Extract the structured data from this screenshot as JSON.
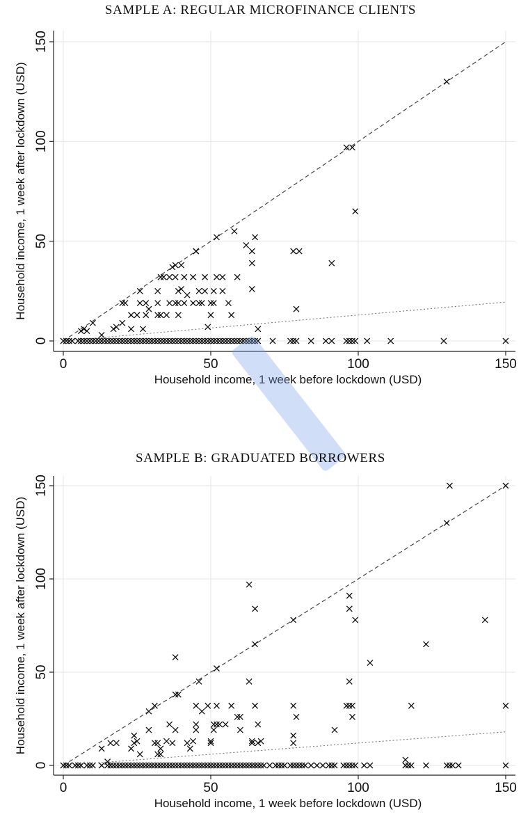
{
  "panels": [
    {
      "title": "SAMPLE A: REGULAR MICROFINANCE CLIENTS"
    },
    {
      "title": "SAMPLE B: GRADUATED BORROWERS"
    }
  ],
  "chart_data": [
    {
      "type": "scatter",
      "title": "SAMPLE A: REGULAR MICROFINANCE CLIENTS",
      "xlabel": "Household income, 1 week before lockdown (USD)",
      "ylabel": "Household income, 1 week after lockdown (USD)",
      "xlim": [
        0,
        150
      ],
      "ylim": [
        0,
        150
      ],
      "xticks": [
        0,
        50,
        100,
        150
      ],
      "yticks": [
        0,
        50,
        100,
        150
      ],
      "grid": true,
      "marker": "x",
      "reference_lines": [
        {
          "style": "dashed",
          "slope": 1.0
        },
        {
          "style": "dotted",
          "slope": 0.13
        }
      ],
      "points": [
        [
          0,
          0
        ],
        [
          1,
          0
        ],
        [
          2,
          0
        ],
        [
          3,
          0
        ],
        [
          5,
          0
        ],
        [
          6,
          0
        ],
        [
          7,
          0
        ],
        [
          8,
          0
        ],
        [
          9,
          0
        ],
        [
          10,
          0
        ],
        [
          11,
          0
        ],
        [
          12,
          0
        ],
        [
          13,
          0
        ],
        [
          14,
          0
        ],
        [
          15,
          0
        ],
        [
          16,
          0
        ],
        [
          17,
          0
        ],
        [
          18,
          0
        ],
        [
          19,
          0
        ],
        [
          20,
          0
        ],
        [
          21,
          0
        ],
        [
          22,
          0
        ],
        [
          23,
          0
        ],
        [
          24,
          0
        ],
        [
          25,
          0
        ],
        [
          26,
          0
        ],
        [
          27,
          0
        ],
        [
          28,
          0
        ],
        [
          29,
          0
        ],
        [
          30,
          0
        ],
        [
          31,
          0
        ],
        [
          32,
          0
        ],
        [
          33,
          0
        ],
        [
          34,
          0
        ],
        [
          35,
          0
        ],
        [
          36,
          0
        ],
        [
          37,
          0
        ],
        [
          38,
          0
        ],
        [
          39,
          0
        ],
        [
          40,
          0
        ],
        [
          41,
          0
        ],
        [
          42,
          0
        ],
        [
          43,
          0
        ],
        [
          44,
          0
        ],
        [
          45,
          0
        ],
        [
          46,
          0
        ],
        [
          47,
          0
        ],
        [
          48,
          0
        ],
        [
          49,
          0
        ],
        [
          50,
          0
        ],
        [
          51,
          0
        ],
        [
          52,
          0
        ],
        [
          53,
          0
        ],
        [
          54,
          0
        ],
        [
          55,
          0
        ],
        [
          56,
          0
        ],
        [
          57,
          0
        ],
        [
          58,
          0
        ],
        [
          59,
          0
        ],
        [
          60,
          0
        ],
        [
          61,
          0
        ],
        [
          62,
          0
        ],
        [
          63,
          0
        ],
        [
          64,
          0
        ],
        [
          65,
          0
        ],
        [
          66,
          0
        ],
        [
          71,
          0
        ],
        [
          77,
          0
        ],
        [
          78,
          0
        ],
        [
          79,
          0
        ],
        [
          84,
          0
        ],
        [
          89,
          0
        ],
        [
          91,
          0
        ],
        [
          96,
          0
        ],
        [
          97,
          0
        ],
        [
          98,
          0
        ],
        [
          99,
          0
        ],
        [
          103,
          0
        ],
        [
          111,
          0
        ],
        [
          129,
          0
        ],
        [
          150,
          0
        ],
        [
          6,
          5
        ],
        [
          7,
          6
        ],
        [
          8,
          5
        ],
        [
          10,
          9
        ],
        [
          13,
          3
        ],
        [
          17,
          6
        ],
        [
          18,
          7
        ],
        [
          20,
          9
        ],
        [
          20,
          19
        ],
        [
          21,
          19
        ],
        [
          23,
          6
        ],
        [
          23,
          13
        ],
        [
          25,
          13
        ],
        [
          26,
          19
        ],
        [
          26,
          25
        ],
        [
          27,
          6
        ],
        [
          28,
          13
        ],
        [
          28,
          19
        ],
        [
          29,
          16
        ],
        [
          32,
          13
        ],
        [
          32,
          19
        ],
        [
          32,
          25
        ],
        [
          33,
          32
        ],
        [
          33,
          13
        ],
        [
          34,
          32
        ],
        [
          35,
          13
        ],
        [
          36,
          32
        ],
        [
          36,
          19
        ],
        [
          37,
          37
        ],
        [
          38,
          19
        ],
        [
          38,
          32
        ],
        [
          38,
          38
        ],
        [
          39,
          13
        ],
        [
          39,
          19
        ],
        [
          39,
          25
        ],
        [
          40,
          26
        ],
        [
          40,
          38
        ],
        [
          41,
          19
        ],
        [
          41,
          32
        ],
        [
          42,
          23
        ],
        [
          44,
          19
        ],
        [
          44,
          32
        ],
        [
          45,
          45
        ],
        [
          45,
          45
        ],
        [
          46,
          19
        ],
        [
          46,
          25
        ],
        [
          47,
          19
        ],
        [
          48,
          25
        ],
        [
          48,
          32
        ],
        [
          49,
          7
        ],
        [
          50,
          13
        ],
        [
          50,
          19
        ],
        [
          51,
          25
        ],
        [
          51,
          19
        ],
        [
          52,
          52
        ],
        [
          52,
          32
        ],
        [
          54,
          32
        ],
        [
          54,
          25
        ],
        [
          56,
          19
        ],
        [
          57,
          13
        ],
        [
          58,
          55
        ],
        [
          59,
          32
        ],
        [
          62,
          48
        ],
        [
          64,
          45
        ],
        [
          64,
          39
        ],
        [
          64,
          26
        ],
        [
          65,
          52
        ],
        [
          66,
          6
        ],
        [
          78,
          45
        ],
        [
          80,
          45
        ],
        [
          79,
          16
        ],
        [
          91,
          39
        ],
        [
          96,
          97
        ],
        [
          98,
          97
        ],
        [
          99,
          65
        ],
        [
          130,
          130
        ]
      ]
    },
    {
      "type": "scatter",
      "title": "SAMPLE B: GRADUATED BORROWERS",
      "xlabel": "Household income, 1 week before lockdown (USD)",
      "ylabel": "Household income, 1 week after lockdown (USD)",
      "xlim": [
        0,
        150
      ],
      "ylim": [
        0,
        150
      ],
      "xticks": [
        0,
        50,
        100,
        150
      ],
      "yticks": [
        0,
        50,
        100,
        150
      ],
      "grid": true,
      "marker": "x",
      "reference_lines": [
        {
          "style": "dashed",
          "slope": 1.0
        },
        {
          "style": "dotted",
          "slope": 0.12
        }
      ],
      "points": [
        [
          0,
          0
        ],
        [
          1,
          0
        ],
        [
          2,
          0
        ],
        [
          4,
          0
        ],
        [
          5,
          0
        ],
        [
          6,
          0
        ],
        [
          8,
          0
        ],
        [
          9,
          0
        ],
        [
          10,
          0
        ],
        [
          13,
          0
        ],
        [
          15,
          0
        ],
        [
          16,
          0
        ],
        [
          17,
          0
        ],
        [
          18,
          0
        ],
        [
          19,
          0
        ],
        [
          20,
          0
        ],
        [
          21,
          0
        ],
        [
          22,
          0
        ],
        [
          23,
          0
        ],
        [
          24,
          0
        ],
        [
          25,
          0
        ],
        [
          26,
          0
        ],
        [
          27,
          0
        ],
        [
          28,
          0
        ],
        [
          29,
          0
        ],
        [
          30,
          0
        ],
        [
          31,
          0
        ],
        [
          32,
          0
        ],
        [
          33,
          0
        ],
        [
          34,
          0
        ],
        [
          35,
          0
        ],
        [
          36,
          0
        ],
        [
          37,
          0
        ],
        [
          38,
          0
        ],
        [
          39,
          0
        ],
        [
          40,
          0
        ],
        [
          41,
          0
        ],
        [
          42,
          0
        ],
        [
          43,
          0
        ],
        [
          44,
          0
        ],
        [
          45,
          0
        ],
        [
          46,
          0
        ],
        [
          47,
          0
        ],
        [
          48,
          0
        ],
        [
          49,
          0
        ],
        [
          50,
          0
        ],
        [
          51,
          0
        ],
        [
          52,
          0
        ],
        [
          53,
          0
        ],
        [
          54,
          0
        ],
        [
          55,
          0
        ],
        [
          56,
          0
        ],
        [
          57,
          0
        ],
        [
          58,
          0
        ],
        [
          59,
          0
        ],
        [
          60,
          0
        ],
        [
          61,
          0
        ],
        [
          62,
          0
        ],
        [
          63,
          0
        ],
        [
          64,
          0
        ],
        [
          65,
          0
        ],
        [
          66,
          0
        ],
        [
          67,
          0
        ],
        [
          68,
          0
        ],
        [
          70,
          0
        ],
        [
          72,
          0
        ],
        [
          73,
          0
        ],
        [
          74,
          0
        ],
        [
          75,
          0
        ],
        [
          77,
          0
        ],
        [
          78,
          0
        ],
        [
          79,
          0
        ],
        [
          80,
          0
        ],
        [
          81,
          0
        ],
        [
          82,
          0
        ],
        [
          84,
          0
        ],
        [
          86,
          0
        ],
        [
          88,
          0
        ],
        [
          90,
          0
        ],
        [
          91,
          0
        ],
        [
          92,
          0
        ],
        [
          95,
          0
        ],
        [
          96,
          0
        ],
        [
          97,
          0
        ],
        [
          98,
          0
        ],
        [
          99,
          0
        ],
        [
          102,
          0
        ],
        [
          104,
          0
        ],
        [
          116,
          0
        ],
        [
          117,
          0
        ],
        [
          118,
          0
        ],
        [
          123,
          0
        ],
        [
          130,
          0
        ],
        [
          131,
          0
        ],
        [
          132,
          0
        ],
        [
          134,
          0
        ],
        [
          150,
          0
        ],
        [
          13,
          9
        ],
        [
          15,
          2
        ],
        [
          16,
          12
        ],
        [
          18,
          12
        ],
        [
          23,
          9
        ],
        [
          24,
          12
        ],
        [
          24,
          16
        ],
        [
          25,
          13
        ],
        [
          26,
          6
        ],
        [
          29,
          19
        ],
        [
          29,
          29
        ],
        [
          31,
          12
        ],
        [
          31,
          32
        ],
        [
          32,
          6
        ],
        [
          32,
          12
        ],
        [
          33,
          9
        ],
        [
          33,
          6
        ],
        [
          35,
          13
        ],
        [
          36,
          22
        ],
        [
          37,
          12
        ],
        [
          38,
          19
        ],
        [
          38,
          38
        ],
        [
          38,
          58
        ],
        [
          39,
          38
        ],
        [
          42,
          12
        ],
        [
          43,
          9
        ],
        [
          44,
          13
        ],
        [
          45,
          19
        ],
        [
          45,
          22
        ],
        [
          45,
          32
        ],
        [
          46,
          45
        ],
        [
          47,
          29
        ],
        [
          49,
          32
        ],
        [
          50,
          12
        ],
        [
          50,
          13
        ],
        [
          51,
          19
        ],
        [
          51,
          22
        ],
        [
          52,
          22
        ],
        [
          52,
          52
        ],
        [
          52,
          32
        ],
        [
          53,
          22
        ],
        [
          55,
          22
        ],
        [
          57,
          32
        ],
        [
          59,
          26
        ],
        [
          60,
          26
        ],
        [
          60,
          19
        ],
        [
          63,
          45
        ],
        [
          63,
          97
        ],
        [
          64,
          12
        ],
        [
          64,
          13
        ],
        [
          65,
          32
        ],
        [
          65,
          65
        ],
        [
          65,
          84
        ],
        [
          66,
          22
        ],
        [
          66,
          12
        ],
        [
          67,
          13
        ],
        [
          78,
          78
        ],
        [
          78,
          12
        ],
        [
          78,
          16
        ],
        [
          78,
          32
        ],
        [
          79,
          26
        ],
        [
          92,
          19
        ],
        [
          96,
          32
        ],
        [
          97,
          32
        ],
        [
          97,
          45
        ],
        [
          97,
          91
        ],
        [
          97,
          84
        ],
        [
          98,
          32
        ],
        [
          98,
          26
        ],
        [
          99,
          78
        ],
        [
          104,
          55
        ],
        [
          116,
          3
        ],
        [
          118,
          32
        ],
        [
          123,
          65
        ],
        [
          130,
          130
        ],
        [
          131,
          150
        ],
        [
          143,
          78
        ],
        [
          150,
          150
        ],
        [
          150,
          32
        ]
      ]
    }
  ]
}
